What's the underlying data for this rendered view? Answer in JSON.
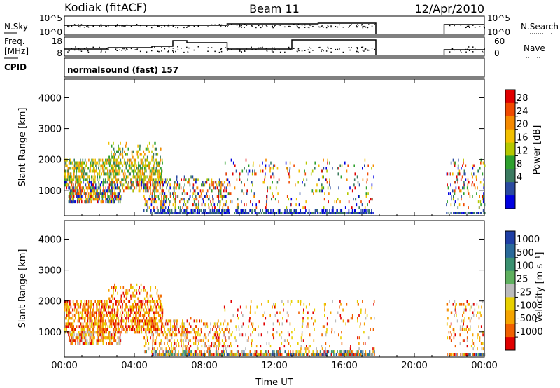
{
  "header": {
    "station": "Kodiak (fitACF)",
    "beam": "Beam 11",
    "date": "12/Apr/2010"
  },
  "panels": {
    "nsky_label": "N.Sky",
    "nsky_ticks": [
      "10^5",
      "10^0"
    ],
    "nsearch_label": "N.Search",
    "nsearch_ticks": [
      "10^5",
      "10^0"
    ],
    "freq_label_line1": "Freq.",
    "freq_label_line2": "[MHz]",
    "freq_ticks": [
      "18",
      "8"
    ],
    "nave_label": "Nave",
    "nave_ticks": [
      "60",
      "0"
    ],
    "cpid_label": "CPID",
    "cpid_text": "normalsound (fast) 157"
  },
  "colorbars": {
    "power": {
      "label": "Power [dB]",
      "ticks": [
        "28",
        "24",
        "20",
        "16",
        "12",
        "8",
        "4"
      ],
      "colors": [
        "#e00000",
        "#f04a00",
        "#f58a00",
        "#f2c000",
        "#b5c800",
        "#2ea02e",
        "#3a7a60",
        "#2a4aa0",
        "#0000e0"
      ]
    },
    "velocity": {
      "label": "Velocity [m s⁻¹]",
      "ticks": [
        "1000",
        "500",
        "100",
        "25",
        "-25",
        "-100",
        "-500",
        "-1000"
      ],
      "colors": [
        "#1f3fa5",
        "#2a6a9a",
        "#3a9070",
        "#5fb05f",
        "#bbbbbb",
        "#e8d000",
        "#f5a400",
        "#f06000",
        "#e00000"
      ]
    }
  },
  "chart_data": [
    {
      "type": "heatmap",
      "name": "power",
      "ylabel": "Slant Range [km]",
      "xlabel": "",
      "x_ticks": [
        "00:00",
        "04:00",
        "08:00",
        "12:00",
        "16:00",
        "20:00",
        "00:00"
      ],
      "y_ticks": [
        "1000",
        "2000",
        "3000",
        "4000"
      ],
      "xlim_hours": [
        0,
        24
      ],
      "ylim_km": [
        180,
        4600
      ],
      "data_coverage_hours": [
        [
          0,
          17.8
        ],
        [
          21.7,
          24
        ]
      ]
    },
    {
      "type": "heatmap",
      "name": "velocity",
      "ylabel": "Slant Range [km]",
      "xlabel": "Time UT",
      "x_ticks": [
        "00:00",
        "04:00",
        "08:00",
        "12:00",
        "16:00",
        "20:00",
        "00:00"
      ],
      "y_ticks": [
        "1000",
        "2000",
        "3000",
        "4000"
      ],
      "xlim_hours": [
        0,
        24
      ],
      "ylim_km": [
        180,
        4600
      ],
      "data_coverage_hours": [
        [
          0,
          17.8
        ],
        [
          21.7,
          24
        ]
      ]
    }
  ]
}
